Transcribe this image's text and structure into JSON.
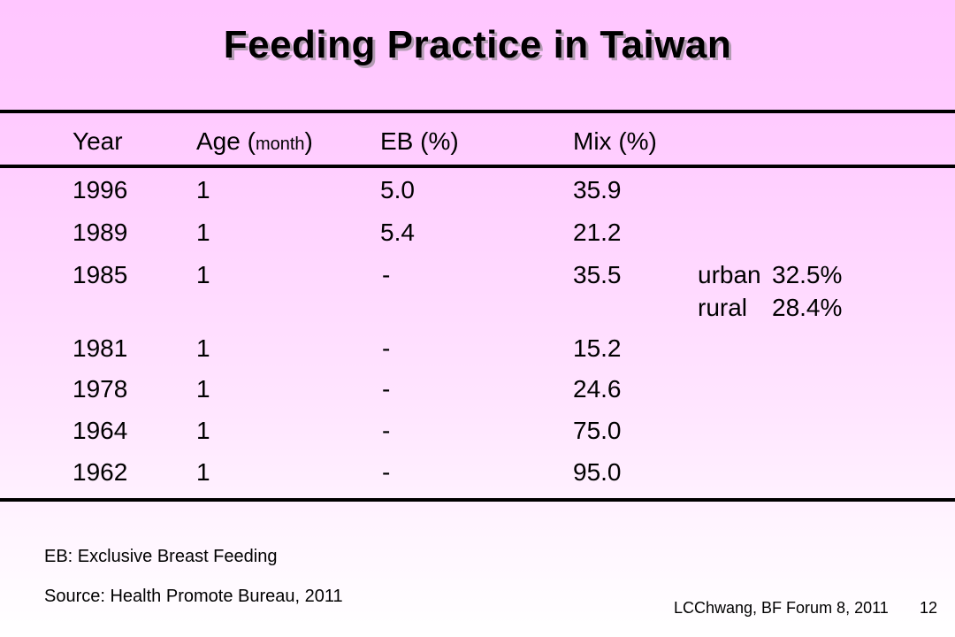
{
  "slide": {
    "title": "Feeding Practice in Taiwan",
    "headers": {
      "year": "Year",
      "age_prefix": "Age (",
      "age_unit": "month",
      "age_suffix": ")",
      "eb": "EB (%)",
      "mix": "Mix (%)"
    },
    "rows": [
      {
        "year": "1996",
        "age": "1",
        "eb": "5.0",
        "mix": "35.9"
      },
      {
        "year": "1989",
        "age": "1",
        "eb": "5.4",
        "mix": "21.2"
      },
      {
        "year": "1985",
        "age": "1",
        "eb": "-",
        "mix": "35.5",
        "notes": [
          {
            "label": "urban",
            "value": "32.5%"
          },
          {
            "label": "rural",
            "value": "28.4%"
          }
        ]
      },
      {
        "year": "1981",
        "age": "1",
        "eb": "-",
        "mix": "15.2"
      },
      {
        "year": "1978",
        "age": "1",
        "eb": "-",
        "mix": "24.6"
      },
      {
        "year": "1964",
        "age": "1",
        "eb": "-",
        "mix": "75.0"
      },
      {
        "year": "1962",
        "age": "1",
        "eb": "-",
        "mix": "95.0"
      }
    ],
    "footnote_definition": "EB: Exclusive Breast Feeding",
    "footnote_source": "Source: Health Promote Bureau, 2011",
    "credit": "LCChwang, BF Forum 8, 2011",
    "page_number": "12",
    "colors": {
      "background_top": "#ffc6ff",
      "background_bottom": "#ffffff",
      "rule": "#000000",
      "title_shadow": "#b39cb3"
    }
  }
}
